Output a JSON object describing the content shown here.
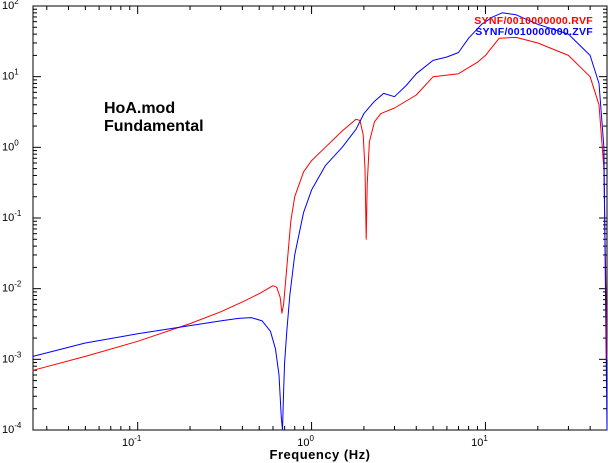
{
  "chart_data": {
    "type": "line",
    "xlabel": "Frequency (Hz)",
    "ylabel": "",
    "x_scale": "log",
    "y_scale": "log",
    "xlim": [
      0.025,
      50
    ],
    "ylim": [
      0.0001,
      100
    ],
    "x_ticks": [
      {
        "value": 0.1,
        "base": "10",
        "exp": "-1"
      },
      {
        "value": 1,
        "base": "10",
        "exp": "0"
      },
      {
        "value": 10,
        "base": "10",
        "exp": "1"
      }
    ],
    "y_ticks": [
      {
        "value": 0.0001,
        "base": "10",
        "exp": "-4"
      },
      {
        "value": 0.001,
        "base": "10",
        "exp": "-3"
      },
      {
        "value": 0.01,
        "base": "10",
        "exp": "-2"
      },
      {
        "value": 0.1,
        "base": "10",
        "exp": "-1"
      },
      {
        "value": 1,
        "base": "10",
        "exp": "0"
      },
      {
        "value": 10,
        "base": "10",
        "exp": "1"
      },
      {
        "value": 100,
        "base": "10",
        "exp": "2"
      }
    ],
    "annotations": [
      "HoA.mod",
      "Fundamental"
    ],
    "grid": false,
    "legend_position": "top-right",
    "series": [
      {
        "name": "SYNF/0010000000.RVF",
        "color": "#ff0000",
        "x": [
          0.025,
          0.05,
          0.1,
          0.2,
          0.3,
          0.4,
          0.5,
          0.6,
          0.63,
          0.66,
          0.675,
          0.69,
          0.72,
          0.76,
          0.8,
          0.9,
          1.0,
          1.2,
          1.5,
          1.8,
          1.9,
          1.98,
          2.03,
          2.06,
          2.09,
          2.15,
          2.3,
          2.5,
          3.0,
          4.0,
          5.0,
          7.0,
          9.0,
          10.0,
          12.0,
          15.0,
          20.0,
          30.0,
          40.0,
          45.0,
          48.0,
          50.0
        ],
        "y": [
          0.0007,
          0.0011,
          0.0018,
          0.0032,
          0.0047,
          0.0065,
          0.0085,
          0.011,
          0.0105,
          0.0075,
          0.0045,
          0.006,
          0.02,
          0.09,
          0.2,
          0.45,
          0.65,
          1.0,
          1.7,
          2.5,
          2.4,
          1.5,
          0.5,
          0.05,
          0.3,
          1.2,
          2.3,
          3.0,
          3.6,
          5.5,
          10.0,
          11.0,
          16.0,
          20.0,
          35.0,
          36.0,
          30.0,
          20.0,
          10.0,
          4.0,
          0.5,
          0.001
        ]
      },
      {
        "name": "SYNF/0010000000.ZVF",
        "color": "#0000ff",
        "x": [
          0.025,
          0.05,
          0.1,
          0.2,
          0.3,
          0.38,
          0.45,
          0.52,
          0.58,
          0.62,
          0.65,
          0.67,
          0.68,
          0.69,
          0.7,
          0.72,
          0.75,
          0.8,
          0.9,
          1.0,
          1.2,
          1.5,
          1.8,
          2.0,
          2.3,
          2.6,
          3.0,
          3.5,
          4.0,
          5.0,
          6.0,
          7.0,
          8.0,
          9.5,
          11.0,
          12.5,
          15.0,
          20.0,
          30.0,
          40.0,
          45.0,
          48.0,
          50.0
        ],
        "y": [
          0.0011,
          0.0017,
          0.0023,
          0.003,
          0.0035,
          0.0038,
          0.0039,
          0.0035,
          0.0025,
          0.0014,
          0.0006,
          0.00015,
          0.0001,
          0.00035,
          0.0009,
          0.0025,
          0.008,
          0.03,
          0.12,
          0.25,
          0.55,
          1.0,
          1.8,
          3.0,
          4.5,
          5.8,
          5.2,
          7.5,
          11.0,
          17.0,
          19.0,
          22.0,
          35.0,
          55.0,
          70.0,
          80.0,
          75.0,
          55.0,
          40.0,
          20.0,
          8.0,
          1.0,
          0.0001
        ]
      }
    ]
  }
}
